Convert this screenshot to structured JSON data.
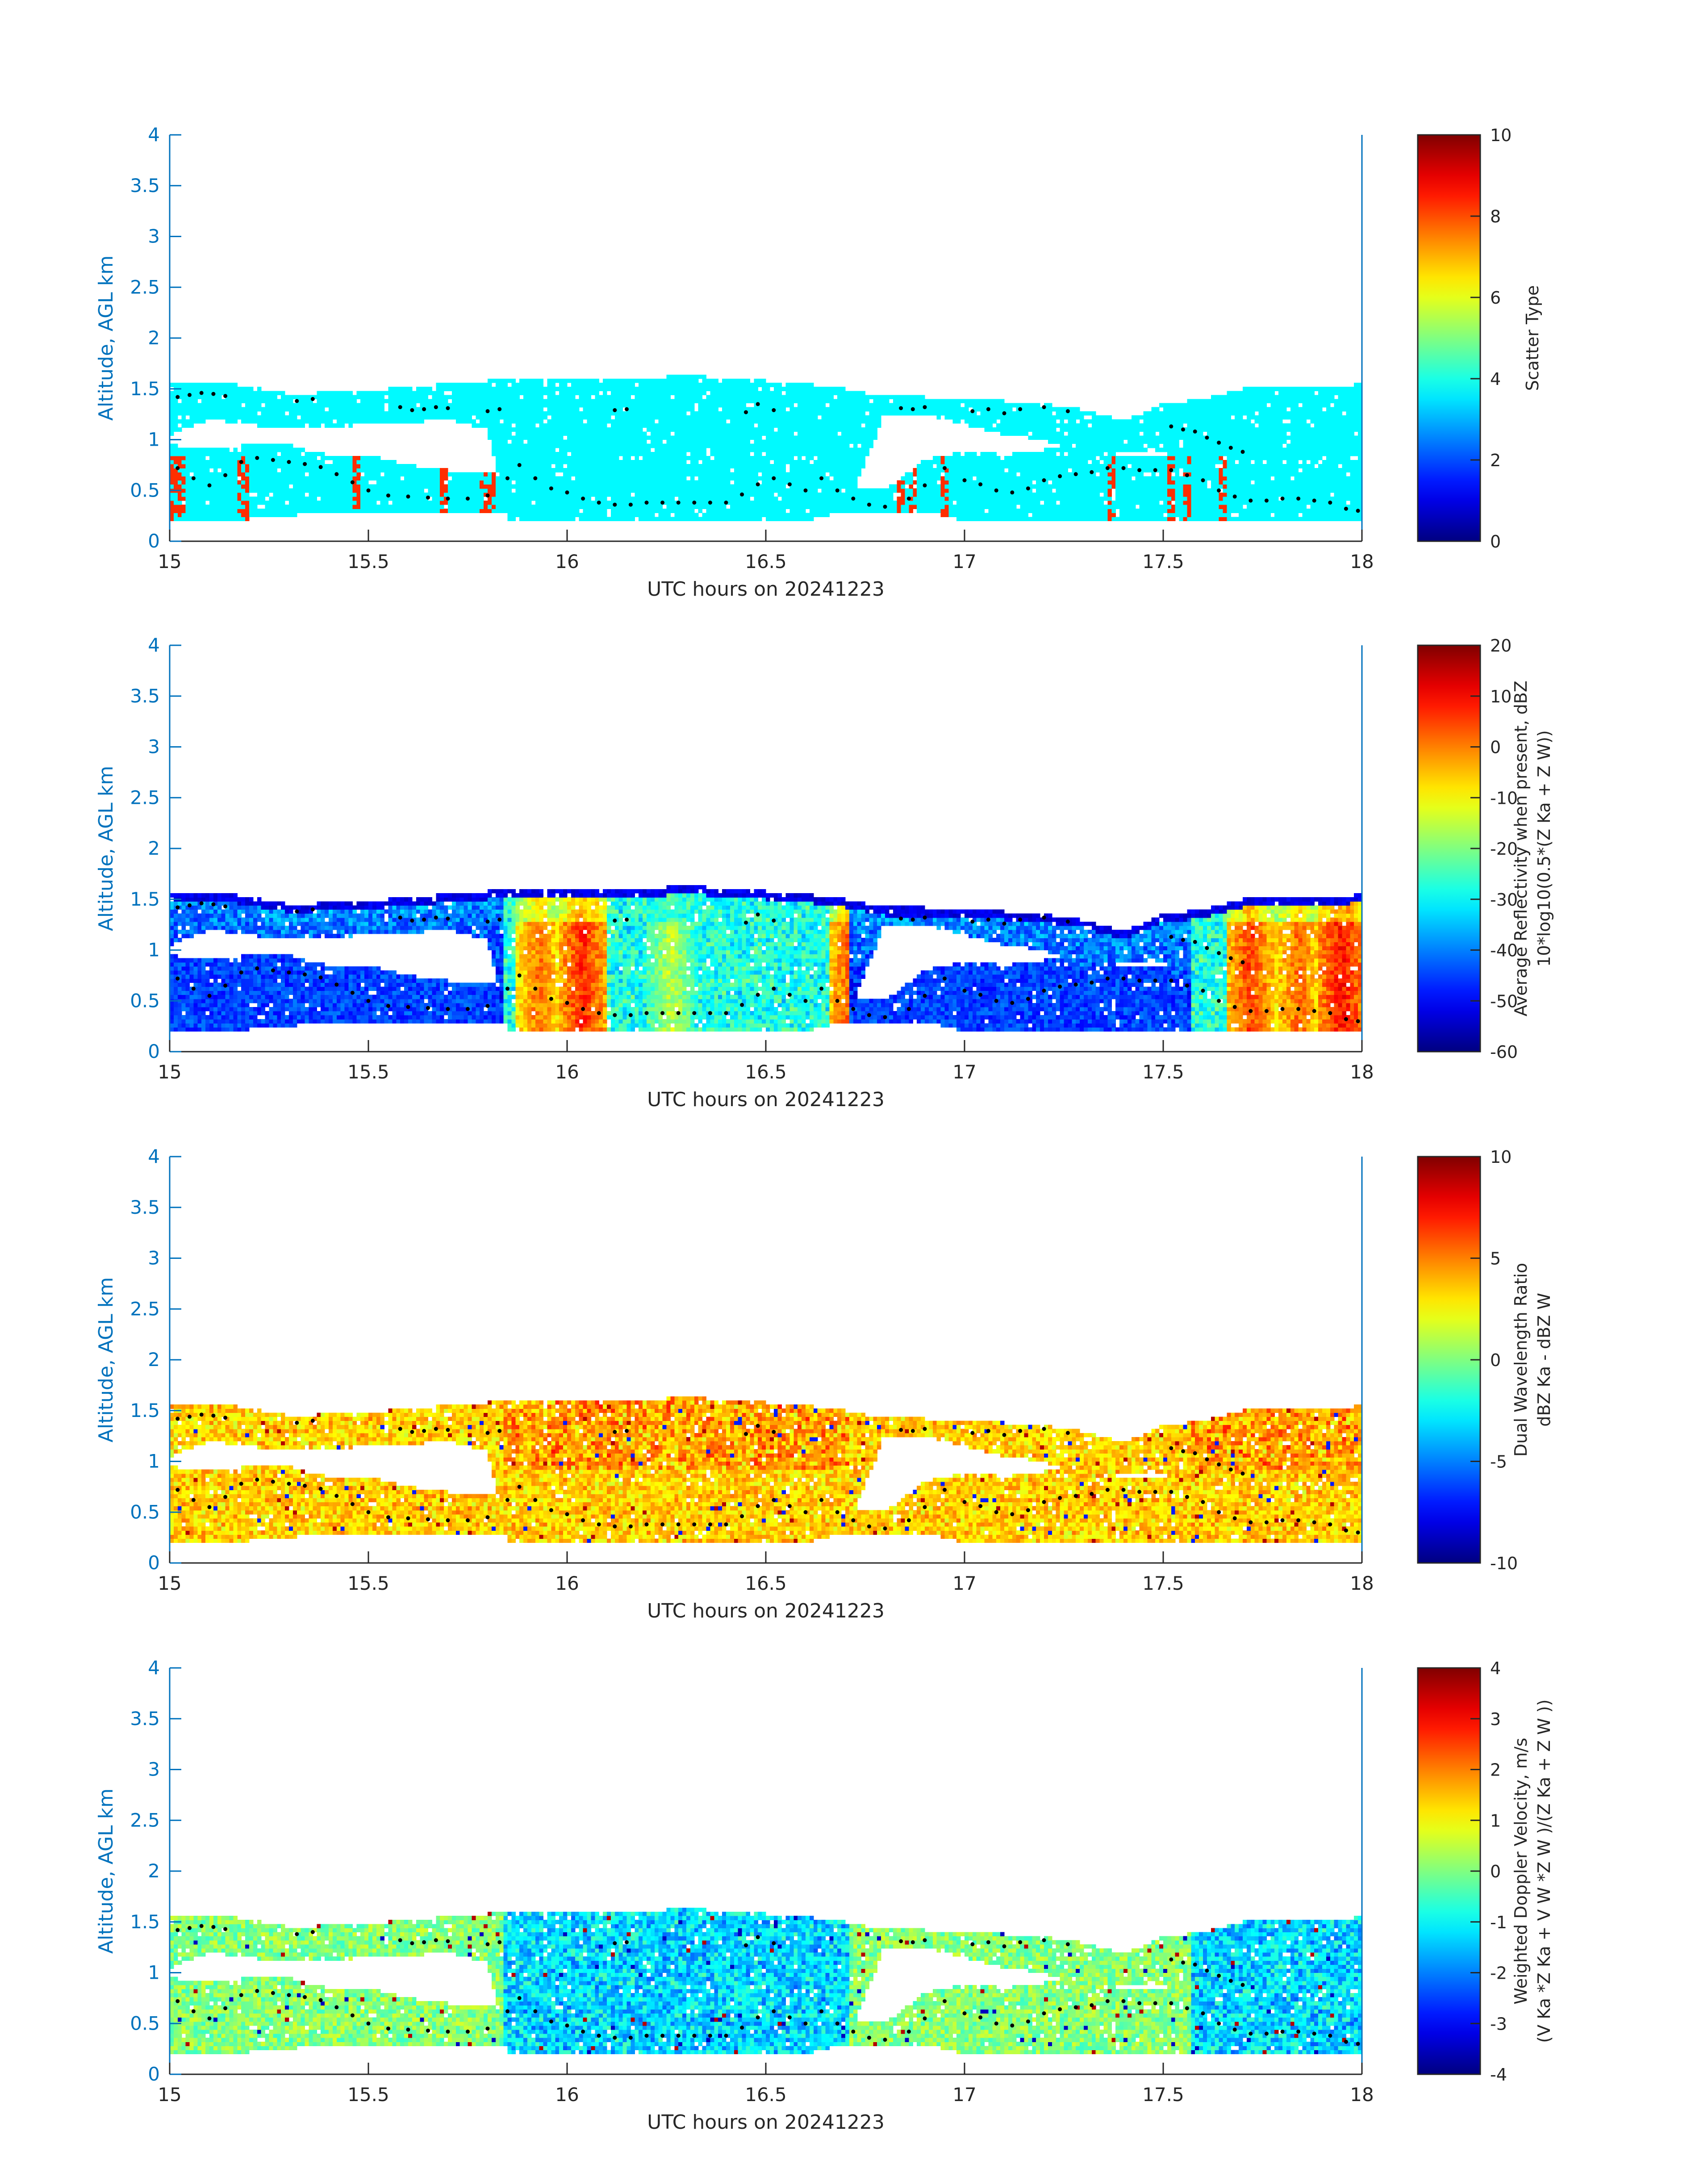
{
  "figure": {
    "x_axis_color": "#262626",
    "y_axis_color": "#0072BD",
    "dot_color": "#000000"
  },
  "chart_data": [
    {
      "type": "heatmap",
      "title": "",
      "xlabel": "UTC hours on 20241223",
      "ylabel": "Altitude, AGL km",
      "xlim": [
        15,
        18
      ],
      "ylim": [
        0,
        4
      ],
      "xticks": [
        "15",
        "15.5",
        "16",
        "16.5",
        "17",
        "17.5",
        "18"
      ],
      "yticks": [
        "0",
        "0.5",
        "1",
        "1.5",
        "2",
        "2.5",
        "3",
        "3.5",
        "4"
      ],
      "colorbar": {
        "label_lines": [
          "Scatter Type"
        ],
        "ticks": [
          "0",
          "2",
          "4",
          "6",
          "8",
          "10"
        ],
        "range": [
          0,
          10
        ],
        "colormap": "jet"
      },
      "field": "scatter_type",
      "dominant_value": 3.7,
      "highlight_value": 8.3,
      "highlight_columns": [
        15.01,
        15.03,
        15.18,
        15.19,
        15.47,
        15.69,
        15.79,
        15.81,
        16.84,
        16.87,
        16.95,
        17.37,
        17.52,
        17.56,
        17.65
      ]
    },
    {
      "type": "heatmap",
      "title": "",
      "xlabel": "UTC hours on 20241223",
      "ylabel": "Altitude, AGL km",
      "xlim": [
        15,
        18
      ],
      "ylim": [
        0,
        4
      ],
      "xticks": [
        "15",
        "15.5",
        "16",
        "16.5",
        "17",
        "17.5",
        "18"
      ],
      "yticks": [
        "0",
        "0.5",
        "1",
        "1.5",
        "2",
        "2.5",
        "3",
        "3.5",
        "4"
      ],
      "colorbar": {
        "label_lines": [
          "Average Reflectivity when present, dBZ",
          "10*log10(0.5*(Z Ka + Z W))"
        ],
        "ticks": [
          "-60",
          "-50",
          "-40",
          "-30",
          "-20",
          "-10",
          "0",
          "10",
          "20"
        ],
        "range": [
          -60,
          20
        ],
        "colormap": "jet"
      },
      "field": "reflectivity",
      "strong_cores": [
        {
          "x": 15.93,
          "value": 2
        },
        {
          "x": 16.04,
          "value": 8
        },
        {
          "x": 16.26,
          "value": -14
        },
        {
          "x": 16.72,
          "value": 5
        },
        {
          "x": 17.72,
          "value": 6
        },
        {
          "x": 17.84,
          "value": 3
        },
        {
          "x": 17.95,
          "value": 10
        }
      ]
    },
    {
      "type": "heatmap",
      "title": "",
      "xlabel": "UTC hours on 20241223",
      "ylabel": "Altitude, AGL km",
      "xlim": [
        15,
        18
      ],
      "ylim": [
        0,
        4
      ],
      "xticks": [
        "15",
        "15.5",
        "16",
        "16.5",
        "17",
        "17.5",
        "18"
      ],
      "yticks": [
        "0",
        "0.5",
        "1",
        "1.5",
        "2",
        "2.5",
        "3",
        "3.5",
        "4"
      ],
      "colorbar": {
        "label_lines": [
          "Dual Wavelength Ratio",
          "dBZ Ka - dBZ W"
        ],
        "ticks": [
          "-10",
          "-5",
          "0",
          "5",
          "10"
        ],
        "range": [
          -10,
          10
        ],
        "colormap": "jet"
      },
      "field": "dwr",
      "typical_range": [
        0,
        6
      ]
    },
    {
      "type": "heatmap",
      "title": "",
      "xlabel": "UTC hours on 20241223",
      "ylabel": "Altitude, AGL km",
      "xlim": [
        15,
        18
      ],
      "ylim": [
        0,
        4
      ],
      "xticks": [
        "15",
        "15.5",
        "16",
        "16.5",
        "17",
        "17.5",
        "18"
      ],
      "yticks": [
        "0",
        "0.5",
        "1",
        "1.5",
        "2",
        "2.5",
        "3",
        "3.5",
        "4"
      ],
      "colorbar": {
        "label_lines": [
          "Weighted Doppler Velocity, m/s",
          "(V Ka *Z Ka + V W *Z W )/(Z Ka + Z W ))"
        ],
        "ticks": [
          "-4",
          "-3",
          "-2",
          "-1",
          "0",
          "1",
          "2",
          "3",
          "4"
        ],
        "range": [
          -4,
          4
        ],
        "colormap": "jet"
      },
      "field": "velocity",
      "typical_range": [
        -2.5,
        1
      ]
    }
  ],
  "cloud_layers": {
    "upper_band": {
      "x": [
        15.0,
        15.1,
        15.2,
        15.3,
        15.5,
        15.55,
        15.7,
        15.8,
        15.85,
        15.95,
        16.05,
        16.15,
        16.25,
        16.35,
        16.5,
        16.6,
        16.7,
        16.8,
        16.9,
        17.0,
        17.1,
        17.2,
        17.3,
        17.4,
        17.5,
        17.6,
        17.7,
        17.8,
        17.9,
        18.0
      ],
      "top": [
        1.55,
        1.58,
        1.52,
        1.45,
        1.48,
        1.5,
        1.55,
        1.58,
        1.58,
        1.6,
        1.6,
        1.6,
        1.62,
        1.62,
        1.58,
        1.55,
        1.5,
        1.42,
        1.42,
        1.4,
        1.38,
        1.35,
        1.3,
        1.18,
        1.35,
        1.4,
        1.5,
        1.5,
        1.52,
        1.55
      ],
      "bottom": [
        1.05,
        1.2,
        1.15,
        1.1,
        1.15,
        1.15,
        1.2,
        1.1,
        0.2,
        0.2,
        0.2,
        0.2,
        0.2,
        0.2,
        0.2,
        0.2,
        0.3,
        1.25,
        1.25,
        1.15,
        1.05,
        1.0,
        0.85,
        0.9,
        0.9,
        0.2,
        0.2,
        0.2,
        0.2,
        0.2
      ]
    },
    "lower_band": {
      "x": [
        15.0,
        15.1,
        15.2,
        15.3,
        15.4,
        15.5,
        15.6,
        15.7,
        15.8,
        16.8,
        16.9,
        17.0,
        17.1,
        17.2,
        17.3,
        17.4,
        17.5,
        17.6
      ],
      "top": [
        0.95,
        0.9,
        0.95,
        0.95,
        0.85,
        0.85,
        0.75,
        0.7,
        0.7,
        0.5,
        0.8,
        0.9,
        0.85,
        0.9,
        0.9,
        0.85,
        0.85,
        0.8
      ],
      "bottom": [
        0.2,
        0.2,
        0.22,
        0.25,
        0.3,
        0.3,
        0.3,
        0.3,
        0.3,
        0.3,
        0.3,
        0.2,
        0.2,
        0.2,
        0.2,
        0.2,
        0.2,
        0.2
      ]
    }
  },
  "overlay_points": {
    "name": "",
    "upper": [
      [
        15.02,
        1.42
      ],
      [
        15.05,
        1.44
      ],
      [
        15.08,
        1.46
      ],
      [
        15.11,
        1.45
      ],
      [
        15.14,
        1.43
      ],
      [
        15.32,
        1.38
      ],
      [
        15.36,
        1.4
      ],
      [
        15.58,
        1.32
      ],
      [
        15.61,
        1.29
      ],
      [
        15.64,
        1.3
      ],
      [
        15.67,
        1.32
      ],
      [
        15.7,
        1.31
      ],
      [
        15.8,
        1.28
      ],
      [
        15.83,
        1.3
      ],
      [
        16.12,
        1.29
      ],
      [
        16.15,
        1.3
      ],
      [
        16.45,
        1.27
      ],
      [
        16.48,
        1.35
      ],
      [
        16.52,
        1.29
      ],
      [
        16.84,
        1.31
      ],
      [
        16.87,
        1.3
      ],
      [
        16.9,
        1.32
      ],
      [
        17.02,
        1.28
      ],
      [
        17.06,
        1.3
      ],
      [
        17.1,
        1.26
      ],
      [
        17.14,
        1.3
      ],
      [
        17.2,
        1.32
      ],
      [
        17.26,
        1.28
      ],
      [
        17.52,
        1.13
      ],
      [
        17.55,
        1.1
      ],
      [
        17.58,
        1.08
      ],
      [
        17.61,
        1.02
      ],
      [
        17.64,
        0.97
      ],
      [
        17.67,
        0.92
      ],
      [
        17.7,
        0.88
      ]
    ],
    "lower": [
      [
        15.02,
        0.72
      ],
      [
        15.06,
        0.62
      ],
      [
        15.1,
        0.55
      ],
      [
        15.14,
        0.65
      ],
      [
        15.18,
        0.78
      ],
      [
        15.22,
        0.82
      ],
      [
        15.26,
        0.8
      ],
      [
        15.3,
        0.78
      ],
      [
        15.34,
        0.76
      ],
      [
        15.38,
        0.73
      ],
      [
        15.42,
        0.66
      ],
      [
        15.46,
        0.58
      ],
      [
        15.5,
        0.5
      ],
      [
        15.55,
        0.45
      ],
      [
        15.6,
        0.44
      ],
      [
        15.65,
        0.43
      ],
      [
        15.7,
        0.42
      ],
      [
        15.75,
        0.42
      ],
      [
        15.8,
        0.45
      ],
      [
        15.85,
        0.62
      ],
      [
        15.88,
        0.75
      ],
      [
        15.92,
        0.62
      ],
      [
        15.96,
        0.52
      ],
      [
        16.0,
        0.48
      ],
      [
        16.04,
        0.42
      ],
      [
        16.08,
        0.38
      ],
      [
        16.12,
        0.36
      ],
      [
        16.16,
        0.36
      ],
      [
        16.2,
        0.38
      ],
      [
        16.24,
        0.38
      ],
      [
        16.28,
        0.38
      ],
      [
        16.32,
        0.38
      ],
      [
        16.36,
        0.38
      ],
      [
        16.4,
        0.38
      ],
      [
        16.44,
        0.46
      ],
      [
        16.48,
        0.56
      ],
      [
        16.52,
        0.62
      ],
      [
        16.56,
        0.56
      ],
      [
        16.6,
        0.5
      ],
      [
        16.64,
        0.62
      ],
      [
        16.68,
        0.5
      ],
      [
        16.72,
        0.42
      ],
      [
        16.76,
        0.36
      ],
      [
        16.8,
        0.34
      ],
      [
        16.86,
        0.42
      ],
      [
        16.9,
        0.55
      ],
      [
        16.95,
        0.72
      ],
      [
        17.0,
        0.6
      ],
      [
        17.04,
        0.56
      ],
      [
        17.08,
        0.5
      ],
      [
        17.12,
        0.48
      ],
      [
        17.16,
        0.52
      ],
      [
        17.2,
        0.6
      ],
      [
        17.24,
        0.64
      ],
      [
        17.28,
        0.66
      ],
      [
        17.32,
        0.68
      ],
      [
        17.36,
        0.72
      ],
      [
        17.4,
        0.72
      ],
      [
        17.44,
        0.7
      ],
      [
        17.48,
        0.7
      ],
      [
        17.52,
        0.7
      ],
      [
        17.56,
        0.65
      ],
      [
        17.6,
        0.6
      ],
      [
        17.64,
        0.5
      ],
      [
        17.68,
        0.44
      ],
      [
        17.72,
        0.4
      ],
      [
        17.76,
        0.4
      ],
      [
        17.8,
        0.42
      ],
      [
        17.84,
        0.42
      ],
      [
        17.88,
        0.4
      ],
      [
        17.92,
        0.38
      ],
      [
        17.96,
        0.32
      ],
      [
        17.99,
        0.3
      ]
    ]
  }
}
